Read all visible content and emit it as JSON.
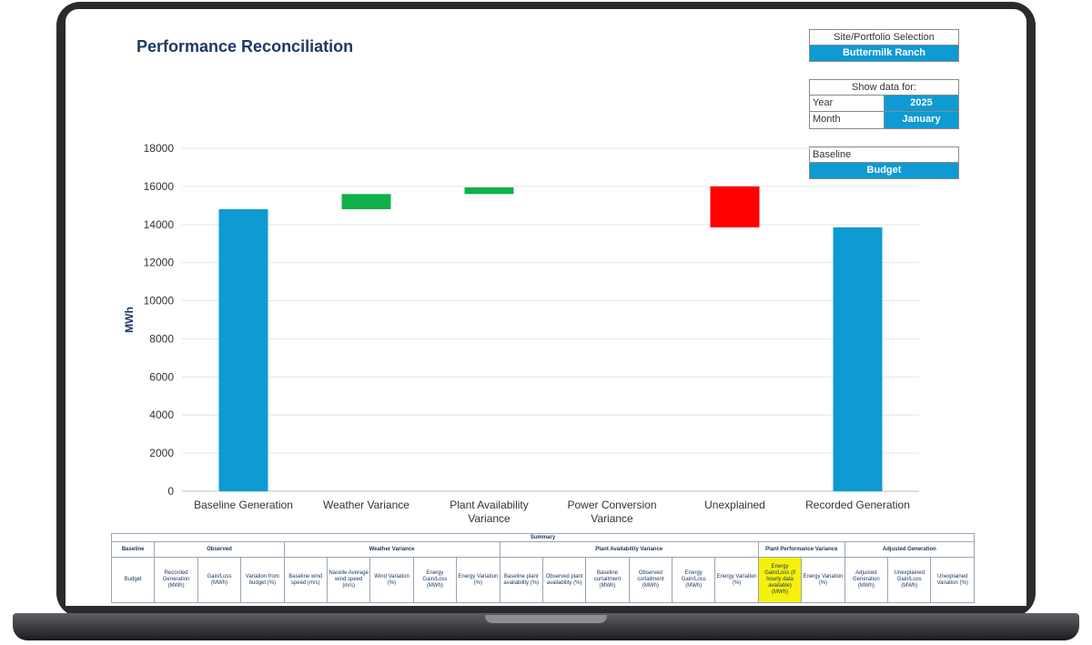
{
  "page": {
    "title": "Performance Reconciliation"
  },
  "site_selection": {
    "header": "Site/Portfolio Selection",
    "value": "Buttermilk Ranch"
  },
  "date_selection": {
    "header": "Show data for:",
    "year_label": "Year",
    "year_value": "2025",
    "month_label": "Month",
    "month_value": "January"
  },
  "baseline_selection": {
    "header": "Baseline",
    "value": "Budget"
  },
  "colors": {
    "total": "#0e9ad3",
    "gain": "#10b04a",
    "loss": "#ff0000",
    "accent": "#0e9ad3",
    "title": "#1f3864"
  },
  "chart_data": {
    "type": "bar",
    "subtype": "waterfall",
    "ylabel": "MWh",
    "ylim": [
      0,
      18000
    ],
    "yticks": [
      0,
      2000,
      4000,
      6000,
      8000,
      10000,
      12000,
      14000,
      16000,
      18000
    ],
    "grid": true,
    "categories": [
      {
        "label": [
          "Baseline Generation"
        ],
        "kind": "total",
        "start": 0,
        "end": 14800
      },
      {
        "label": [
          "Weather Variance"
        ],
        "kind": "gain",
        "start": 14800,
        "end": 15600
      },
      {
        "label": [
          "Plant Availability",
          "Variance"
        ],
        "kind": "gain",
        "start": 15600,
        "end": 15950
      },
      {
        "label": [
          "Power Conversion",
          "Variance"
        ],
        "kind": "none",
        "start": 15950,
        "end": 15950
      },
      {
        "label": [
          "Unexplained"
        ],
        "kind": "loss",
        "start": 16000,
        "end": 13850
      },
      {
        "label": [
          "Recorded Generation"
        ],
        "kind": "total",
        "start": 0,
        "end": 13850
      }
    ]
  },
  "summary": {
    "caption": "Summary",
    "groups": [
      {
        "label": "Baseline",
        "span": 1
      },
      {
        "label": "Observed",
        "span": 3
      },
      {
        "label": "Weather Variance",
        "span": 5
      },
      {
        "label": "Plant Availability Variance",
        "span": 6
      },
      {
        "label": "Plant Performance Variance",
        "span": 2
      },
      {
        "label": "Adjusted Generation",
        "span": 3
      }
    ],
    "columns": [
      "Budget",
      "Recorded Generation (MWh)",
      "Gain/Loss (MWh)",
      "Variation from budget (%)",
      "Baseline wind speed (m/s)",
      "Nacelle Average wind speed (m/s)",
      "Wind Variation (%)",
      "Energy Gain/Loss (MWh)",
      "Energy Variation (%)",
      "Baseline plant availability (%)",
      "Observed plant availability (%)",
      "Baseline curtailment (MWh)",
      "Observed curtailment (MWh)",
      "Energy Gain/Loss (MWh)",
      "Energy Variation (%)",
      "Energy Gain/Loss (if hourly data available) (MWh)",
      "Energy Variation (%)",
      "Adjusted Generation (MWh)",
      "Unexplained Gain/Loss (MWh)",
      "Unexplained Variation (%)"
    ],
    "highlight_column": 15
  }
}
